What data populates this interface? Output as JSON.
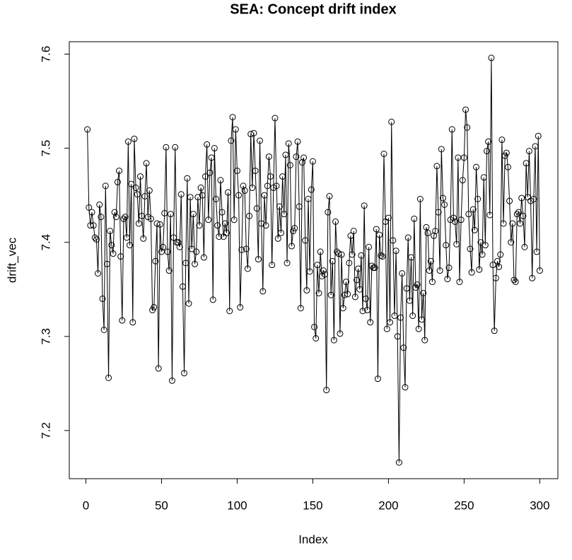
{
  "chart_data": {
    "type": "line",
    "title": "SEA: Concept drift index",
    "x_label": "Index",
    "y_label": "drift_vec",
    "x": [
      1,
      2,
      3,
      4,
      5,
      6,
      7,
      8,
      9,
      10,
      11,
      12,
      13,
      14,
      15,
      16,
      17,
      18,
      19,
      20,
      21,
      22,
      23,
      24,
      25,
      26,
      27,
      28,
      29,
      30,
      31,
      32,
      33,
      34,
      35,
      36,
      37,
      38,
      39,
      40,
      41,
      42,
      43,
      44,
      45,
      46,
      47,
      48,
      49,
      50,
      51,
      52,
      53,
      54,
      55,
      56,
      57,
      58,
      59,
      60,
      61,
      62,
      63,
      64,
      65,
      66,
      67,
      68,
      69,
      70,
      71,
      72,
      73,
      74,
      75,
      76,
      77,
      78,
      79,
      80,
      81,
      82,
      83,
      84,
      85,
      86,
      87,
      88,
      89,
      90,
      91,
      92,
      93,
      94,
      95,
      96,
      97,
      98,
      99,
      100,
      101,
      102,
      103,
      104,
      105,
      106,
      107,
      108,
      109,
      110,
      111,
      112,
      113,
      114,
      115,
      116,
      117,
      118,
      119,
      120,
      121,
      122,
      123,
      124,
      125,
      126,
      127,
      128,
      129,
      130,
      131,
      132,
      133,
      134,
      135,
      136,
      137,
      138,
      139,
      140,
      141,
      142,
      143,
      144,
      145,
      146,
      147,
      148,
      149,
      150,
      151,
      152,
      153,
      154,
      155,
      156,
      157,
      158,
      159,
      160,
      161,
      162,
      163,
      164,
      165,
      166,
      167,
      168,
      169,
      170,
      171,
      172,
      173,
      174,
      175,
      176,
      177,
      178,
      179,
      180,
      181,
      182,
      183,
      184,
      185,
      186,
      187,
      188,
      189,
      190,
      191,
      192,
      193,
      194,
      195,
      196,
      197,
      198,
      199,
      200,
      201,
      202,
      203,
      204,
      205,
      206,
      207,
      208,
      209,
      210,
      211,
      212,
      213,
      214,
      215,
      216,
      217,
      218,
      219,
      220,
      221,
      222,
      223,
      224,
      225,
      226,
      227,
      228,
      229,
      230,
      231,
      232,
      233,
      234,
      235,
      236,
      237,
      238,
      239,
      240,
      241,
      242,
      243,
      244,
      245,
      246,
      247,
      248,
      249,
      250,
      251,
      252,
      253,
      254,
      255,
      256,
      257,
      258,
      259,
      260,
      261,
      262,
      263,
      264,
      265,
      266,
      267,
      268,
      269,
      270,
      271,
      272,
      273,
      274,
      275,
      276,
      277,
      278,
      279,
      280,
      281,
      282,
      283,
      284,
      285,
      286,
      287,
      288,
      289,
      290,
      291,
      292,
      293,
      294,
      295,
      296,
      297,
      298,
      299,
      300
    ],
    "values": [
      7.52,
      7.437,
      7.418,
      7.432,
      7.418,
      7.405,
      7.403,
      7.367,
      7.44,
      7.427,
      7.34,
      7.307,
      7.46,
      7.377,
      7.256,
      7.412,
      7.397,
      7.388,
      7.432,
      7.427,
      7.464,
      7.476,
      7.385,
      7.317,
      7.425,
      7.427,
      7.405,
      7.507,
      7.397,
      7.462,
      7.315,
      7.51,
      7.458,
      7.451,
      7.42,
      7.47,
      7.428,
      7.404,
      7.449,
      7.484,
      7.427,
      7.455,
      7.425,
      7.328,
      7.331,
      7.38,
      7.42,
      7.266,
      7.419,
      7.39,
      7.395,
      7.431,
      7.501,
      7.39,
      7.37,
      7.43,
      7.253,
      7.405,
      7.501,
      7.4,
      7.4,
      7.395,
      7.451,
      7.353,
      7.261,
      7.378,
      7.468,
      7.335,
      7.448,
      7.393,
      7.43,
      7.377,
      7.39,
      7.448,
      7.418,
      7.458,
      7.45,
      7.384,
      7.47,
      7.504,
      7.424,
      7.474,
      7.49,
      7.339,
      7.5,
      7.446,
      7.418,
      7.406,
      7.466,
      7.432,
      7.406,
      7.42,
      7.41,
      7.453,
      7.327,
      7.508,
      7.533,
      7.424,
      7.52,
      7.476,
      7.45,
      7.331,
      7.392,
      7.46,
      7.455,
      7.393,
      7.372,
      7.428,
      7.515,
      7.458,
      7.516,
      7.476,
      7.436,
      7.382,
      7.508,
      7.42,
      7.348,
      7.45,
      7.418,
      7.46,
      7.491,
      7.47,
      7.376,
      7.458,
      7.532,
      7.46,
      7.404,
      7.438,
      7.41,
      7.47,
      7.43,
      7.493,
      7.378,
      7.505,
      7.482,
      7.396,
      7.412,
      7.415,
      7.491,
      7.507,
      7.438,
      7.33,
      7.485,
      7.49,
      7.402,
      7.349,
      7.446,
      7.369,
      7.456,
      7.486,
      7.31,
      7.298,
      7.376,
      7.346,
      7.39,
      7.364,
      7.37,
      7.366,
      7.243,
      7.432,
      7.449,
      7.344,
      7.38,
      7.296,
      7.422,
      7.39,
      7.388,
      7.303,
      7.387,
      7.33,
      7.344,
      7.358,
      7.345,
      7.378,
      7.407,
      7.387,
      7.412,
      7.342,
      7.36,
      7.372,
      7.35,
      7.386,
      7.327,
      7.439,
      7.34,
      7.328,
      7.395,
      7.315,
      7.375,
      7.373,
      7.373,
      7.414,
      7.255,
      7.408,
      7.386,
      7.385,
      7.494,
      7.422,
      7.308,
      7.426,
      7.315,
      7.528,
      7.402,
      7.322,
      7.391,
      7.3,
      7.166,
      7.32,
      7.367,
      7.288,
      7.246,
      7.351,
      7.405,
      7.338,
      7.384,
      7.322,
      7.425,
      7.352,
      7.355,
      7.308,
      7.446,
      7.318,
      7.346,
      7.296,
      7.416,
      7.41,
      7.37,
      7.38,
      7.358,
      7.407,
      7.412,
      7.481,
      7.432,
      7.37,
      7.499,
      7.447,
      7.44,
      7.397,
      7.361,
      7.373,
      7.424,
      7.52,
      7.426,
      7.422,
      7.398,
      7.49,
      7.358,
      7.424,
      7.466,
      7.49,
      7.541,
      7.522,
      7.43,
      7.393,
      7.368,
      7.435,
      7.413,
      7.48,
      7.446,
      7.371,
      7.4,
      7.387,
      7.469,
      7.397,
      7.497,
      7.507,
      7.429,
      7.596,
      7.376,
      7.306,
      7.362,
      7.38,
      7.374,
      7.387,
      7.509,
      7.42,
      7.492,
      7.495,
      7.48,
      7.444,
      7.4,
      7.42,
      7.36,
      7.358,
      7.43,
      7.432,
      7.42,
      7.447,
      7.428,
      7.395,
      7.484,
      7.448,
      7.497,
      7.444,
      7.362,
      7.446,
      7.502,
      7.39,
      7.513,
      7.37
    ],
    "color": "#000000",
    "markers": true,
    "xlim": [
      -10.96,
      311.96
    ],
    "xticks": [
      0,
      50,
      100,
      150,
      200,
      250,
      300
    ],
    "ylim": [
      7.1488,
      7.6132
    ],
    "yticks": [
      7.2,
      7.3,
      7.4,
      7.5,
      7.6
    ]
  }
}
